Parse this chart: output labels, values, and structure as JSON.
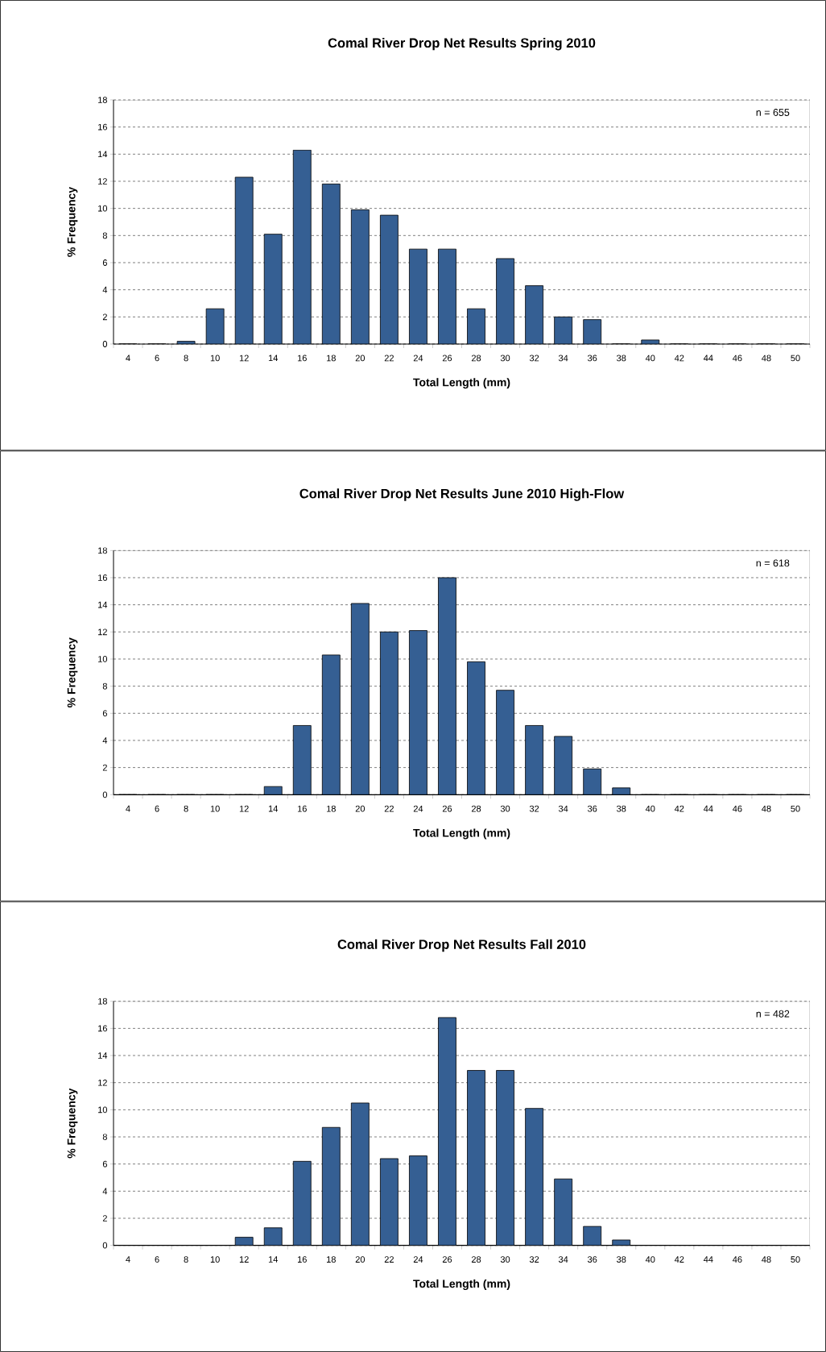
{
  "chart_data": [
    {
      "type": "bar",
      "title": "Comal River Drop Net Results Spring 2010",
      "xlabel": "Total Length (mm)",
      "ylabel": "% Frequency",
      "categories": [
        "4",
        "6",
        "8",
        "10",
        "12",
        "14",
        "16",
        "18",
        "20",
        "22",
        "24",
        "26",
        "28",
        "30",
        "32",
        "34",
        "36",
        "38",
        "40",
        "42",
        "44",
        "46",
        "48",
        "50"
      ],
      "values": [
        0,
        0,
        0.2,
        2.6,
        12.3,
        8.1,
        14.3,
        11.8,
        9.9,
        9.5,
        7.0,
        7.0,
        2.6,
        6.3,
        4.3,
        2.0,
        1.8,
        0,
        0.3,
        0,
        0,
        0,
        0,
        0
      ],
      "color": "#355f93",
      "ylim": [
        0,
        18
      ],
      "yticks": [
        0,
        2,
        4,
        6,
        8,
        10,
        12,
        14,
        16,
        18
      ],
      "grid": "y",
      "annotations": [
        "n = 655"
      ]
    },
    {
      "type": "bar",
      "title": "Comal River Drop Net Results June 2010 High-Flow",
      "xlabel": "Total Length (mm)",
      "ylabel": "% Frequency",
      "categories": [
        "4",
        "6",
        "8",
        "10",
        "12",
        "14",
        "16",
        "18",
        "20",
        "22",
        "24",
        "26",
        "28",
        "30",
        "32",
        "34",
        "36",
        "38",
        "40",
        "42",
        "44",
        "46",
        "48",
        "50"
      ],
      "values": [
        0,
        0,
        0,
        0,
        0,
        0.6,
        5.1,
        10.3,
        14.1,
        12.0,
        12.1,
        16.0,
        9.8,
        7.7,
        5.1,
        4.3,
        1.9,
        0.5,
        0,
        0,
        0,
        0,
        0,
        0
      ],
      "color": "#355f93",
      "ylim": [
        0,
        18
      ],
      "yticks": [
        0,
        2,
        4,
        6,
        8,
        10,
        12,
        14,
        16,
        18
      ],
      "grid": "y",
      "annotations": [
        "n = 618"
      ]
    },
    {
      "type": "bar",
      "title": "Comal River Drop Net Results Fall 2010",
      "xlabel": "Total Length (mm)",
      "ylabel": "% Frequency",
      "categories": [
        "4",
        "6",
        "8",
        "10",
        "12",
        "14",
        "16",
        "18",
        "20",
        "22",
        "24",
        "26",
        "28",
        "30",
        "32",
        "34",
        "36",
        "38",
        "40",
        "42",
        "44",
        "46",
        "48",
        "50"
      ],
      "values": [
        0,
        0,
        0,
        0,
        0.6,
        1.3,
        6.2,
        8.7,
        10.5,
        6.4,
        6.6,
        16.8,
        12.9,
        12.9,
        10.1,
        4.9,
        1.4,
        0.4,
        0,
        0,
        0,
        0,
        0,
        0
      ],
      "color": "#355f93",
      "ylim": [
        0,
        18
      ],
      "yticks": [
        0,
        2,
        4,
        6,
        8,
        10,
        12,
        14,
        16,
        18
      ],
      "grid": "y",
      "annotations": [
        "n = 482"
      ]
    }
  ]
}
